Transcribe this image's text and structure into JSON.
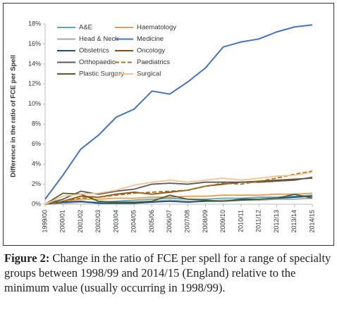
{
  "chart_data": {
    "type": "line",
    "ylabel": "Difference in the ratio of FCE per Spell",
    "categories": [
      "1999/00",
      "2000/01",
      "2001/02",
      "2002/03",
      "2003/04",
      "2004/05",
      "2005/06",
      "2006/07",
      "2007/08",
      "2008/09",
      "2009/10",
      "2010/11",
      "2011/12",
      "2012/13",
      "2013/14",
      "2014/15"
    ],
    "ylim": [
      0,
      18
    ],
    "yticks": [
      {
        "value": 0,
        "label": "0%"
      },
      {
        "value": 2,
        "label": "2%"
      },
      {
        "value": 4,
        "label": "4%"
      },
      {
        "value": 6,
        "label": "6%"
      },
      {
        "value": 8,
        "label": "8%"
      },
      {
        "value": 10,
        "label": "10%"
      },
      {
        "value": 12,
        "label": "12%"
      },
      {
        "value": 14,
        "label": "14%"
      },
      {
        "value": 16,
        "label": "16%"
      },
      {
        "value": 18,
        "label": "18%"
      }
    ],
    "series": [
      {
        "name": "A&E",
        "color": "#4bacc6",
        "values": [
          0,
          0.1,
          0.2,
          0.2,
          0.3,
          0.4,
          0.5,
          0.6,
          0.5,
          0.5,
          0.6,
          0.6,
          0.7,
          0.7,
          0.8,
          0.9
        ]
      },
      {
        "name": "Haematology",
        "color": "#f79646",
        "values": [
          0,
          0.3,
          0.5,
          0.5,
          0.6,
          0.6,
          0.7,
          0.7,
          0.8,
          0.8,
          0.9,
          0.9,
          0.9,
          1.0,
          1.0,
          1.1
        ]
      },
      {
        "name": "Head & Neck",
        "color": "#a6a6a6",
        "values": [
          0,
          0.1,
          0.2,
          0.1,
          0.2,
          0.2,
          0.3,
          0.4,
          0.3,
          0.3,
          0.4,
          0.4,
          0.4,
          0.5,
          0.5,
          0.6
        ]
      },
      {
        "name": "Medicine",
        "color": "#4472c4",
        "values": [
          0.5,
          2.9,
          5.5,
          6.9,
          8.7,
          9.5,
          11.3,
          11.0,
          12.2,
          13.6,
          15.7,
          16.2,
          16.5,
          17.2,
          17.7,
          17.9
        ]
      },
      {
        "name": "Obstetrics",
        "color": "#1f497d",
        "values": [
          0,
          0.2,
          0.3,
          0.1,
          0.1,
          0.1,
          0.2,
          0.3,
          0.2,
          0.3,
          0.3,
          0.5,
          0.5,
          0.6,
          0.7,
          0.8
        ]
      },
      {
        "name": "Oncology",
        "color": "#984807",
        "values": [
          0,
          0.3,
          0.8,
          0.7,
          1.0,
          1.2,
          1.0,
          1.2,
          1.4,
          1.8,
          2.0,
          2.2,
          2.3,
          2.4,
          2.5,
          2.6
        ]
      },
      {
        "name": "Orthopaedic",
        "color": "#595959",
        "values": [
          0,
          0.5,
          1.3,
          1.0,
          1.3,
          1.5,
          2.0,
          2.1,
          2.0,
          2.2,
          2.2,
          2.2,
          2.2,
          2.3,
          2.4,
          2.7
        ]
      },
      {
        "name": "Paediatrics",
        "color": "#9c7a1c",
        "dashed": true,
        "values": [
          0,
          0.3,
          0.6,
          0.7,
          0.9,
          1.1,
          1.2,
          1.3,
          1.4,
          1.8,
          2.1,
          2.0,
          2.3,
          2.6,
          3.0,
          3.3
        ]
      },
      {
        "name": "Plastic Surgery",
        "color": "#4f6228",
        "values": [
          0,
          1.1,
          1.0,
          0.3,
          0.2,
          0.2,
          0.3,
          0.9,
          0.5,
          0.4,
          0.3,
          0.4,
          0.5,
          0.6,
          1.0,
          0.6
        ]
      },
      {
        "name": "Surgical",
        "color": "#fabf8f",
        "values": [
          0,
          0.8,
          1.0,
          1.1,
          1.4,
          1.9,
          2.2,
          2.4,
          2.2,
          2.4,
          2.6,
          2.4,
          2.6,
          2.8,
          2.9,
          3.2
        ]
      }
    ]
  },
  "caption": {
    "label": "Figure 2:",
    "text": "Change in the ratio of FCE per spell for a range of specialty groups between 1998/99 and 2014/15 (England) relative to the minimum value (usually occurring in 1998/99)."
  }
}
